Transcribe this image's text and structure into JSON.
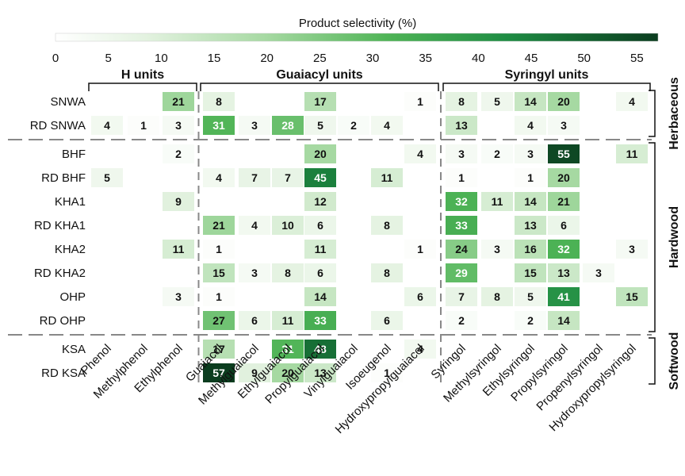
{
  "chart_data": {
    "type": "heatmap",
    "colorbar": {
      "title": "Product selectivity (%)",
      "ticks": [
        "0",
        "5",
        "10",
        "15",
        "20",
        "25",
        "30",
        "35",
        "40",
        "45",
        "50",
        "55"
      ],
      "range": [
        0,
        57
      ],
      "color_low": "#ffffff",
      "color_high": "#0b3d1f"
    },
    "column_groups": [
      {
        "label": "H units",
        "start": 0,
        "end": 2
      },
      {
        "label": "Guaiacyl units",
        "start": 3,
        "end": 9
      },
      {
        "label": "Syringyl units",
        "start": 10,
        "end": 15
      }
    ],
    "columns": [
      "Phenol",
      "Methylphenol",
      "Ethylphenol",
      "Guaiacol",
      "Methylguaiacol",
      "Ethylguaiacol",
      "Propylguaiacol",
      "Vinylguaiacol",
      "Isoeugenol",
      "Hydroxypropylguaiacol",
      "Syringol",
      "Methylsyringol",
      "Ethylsyringol",
      "Propylsyringol",
      "Propenylsyringol",
      "Hydroxypropylsyringol"
    ],
    "rows": [
      "SNWA",
      "RD SNWA",
      "BHF",
      "RD BHF",
      "KHA1",
      "RD KHA1",
      "KHA2",
      "RD KHA2",
      "OHP",
      "RD OHP",
      "KSA",
      "RD KSA"
    ],
    "row_groups": [
      {
        "label": "Herbaceous",
        "start": 0,
        "end": 1
      },
      {
        "label": "Hardwood",
        "start": 2,
        "end": 9
      },
      {
        "label": "Softwood",
        "start": 10,
        "end": 11
      }
    ],
    "values": [
      [
        null,
        null,
        21,
        8,
        null,
        null,
        17,
        null,
        null,
        1,
        8,
        5,
        14,
        20,
        null,
        4
      ],
      [
        4,
        1,
        3,
        31,
        3,
        28,
        5,
        2,
        4,
        null,
        13,
        null,
        4,
        3,
        null,
        null
      ],
      [
        null,
        null,
        2,
        null,
        null,
        null,
        20,
        null,
        null,
        4,
        3,
        2,
        3,
        55,
        null,
        11
      ],
      [
        5,
        null,
        null,
        4,
        7,
        7,
        45,
        null,
        11,
        null,
        1,
        null,
        1,
        20,
        null,
        null
      ],
      [
        null,
        null,
        9,
        null,
        null,
        null,
        12,
        null,
        null,
        null,
        32,
        11,
        14,
        21,
        null,
        null
      ],
      [
        null,
        null,
        null,
        21,
        4,
        10,
        6,
        null,
        8,
        null,
        33,
        null,
        13,
        6,
        null,
        null
      ],
      [
        null,
        null,
        11,
        1,
        null,
        null,
        11,
        null,
        null,
        1,
        24,
        3,
        16,
        32,
        null,
        3
      ],
      [
        null,
        null,
        null,
        15,
        3,
        8,
        6,
        null,
        8,
        null,
        29,
        null,
        15,
        13,
        3,
        null
      ],
      [
        null,
        null,
        3,
        1,
        null,
        null,
        14,
        null,
        null,
        6,
        7,
        8,
        5,
        41,
        null,
        15
      ],
      [
        null,
        null,
        null,
        27,
        6,
        11,
        33,
        null,
        6,
        null,
        2,
        null,
        2,
        14,
        null,
        null
      ],
      [
        null,
        null,
        null,
        17,
        null,
        31,
        48,
        null,
        null,
        4,
        null,
        null,
        null,
        null,
        null,
        null
      ],
      [
        null,
        null,
        null,
        57,
        9,
        20,
        13,
        null,
        1,
        null,
        null,
        null,
        null,
        null,
        null,
        null
      ]
    ]
  }
}
